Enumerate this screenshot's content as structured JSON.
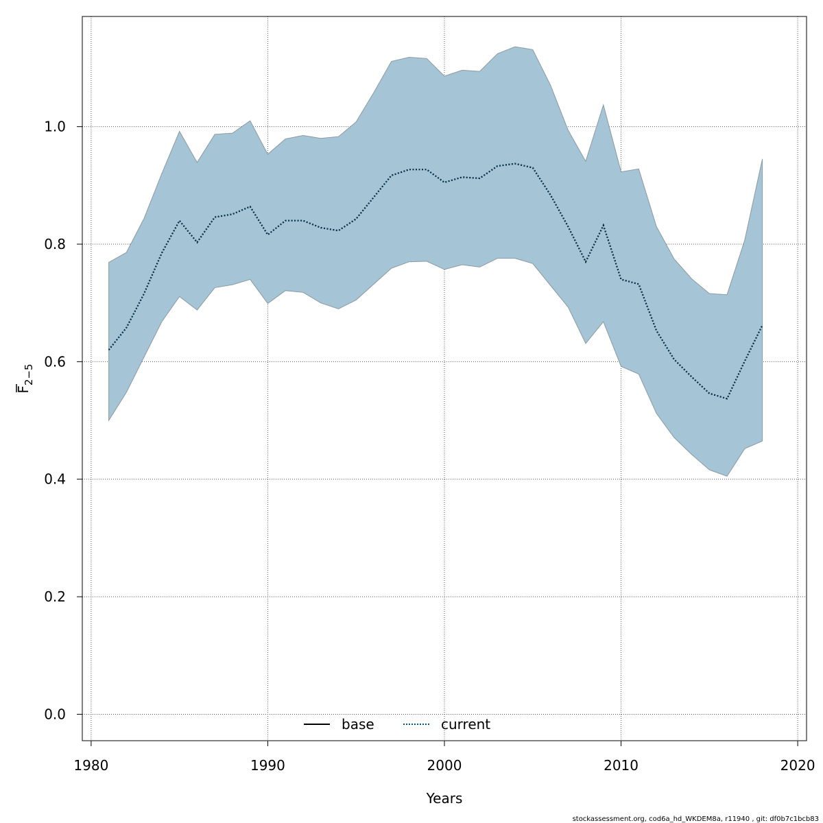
{
  "chart_data": {
    "type": "line",
    "title": "",
    "xlabel": "Years",
    "ylabel": {
      "main": "F",
      "sub": "2−5"
    },
    "xlim": [
      1979.5,
      2020.5
    ],
    "ylim": [
      -0.045,
      1.1875
    ],
    "x_ticks": [
      1980,
      1990,
      2000,
      2010,
      2020
    ],
    "y_ticks": [
      0.0,
      0.2,
      0.4,
      0.6,
      0.8,
      1.0
    ],
    "y_tick_labels": [
      "0.0",
      "0.2",
      "0.4",
      "0.6",
      "0.8",
      "1.0"
    ],
    "grid": true,
    "legend": {
      "placement": "bottom-center",
      "entries": [
        {
          "name": "base",
          "style": "solid",
          "color": "#000000"
        },
        {
          "name": "current",
          "style": "dotted",
          "color": "#00568C"
        }
      ]
    },
    "years": [
      1981,
      1982,
      1983,
      1984,
      1985,
      1986,
      1987,
      1988,
      1989,
      1990,
      1991,
      1992,
      1993,
      1994,
      1995,
      1996,
      1997,
      1998,
      1999,
      2000,
      2001,
      2002,
      2003,
      2004,
      2005,
      2006,
      2007,
      2008,
      2009,
      2010,
      2011,
      2012,
      2013,
      2014,
      2015,
      2016,
      2017,
      2018
    ],
    "series": [
      {
        "name": "current",
        "values": [
          0.62,
          0.658,
          0.716,
          0.785,
          0.84,
          0.803,
          0.846,
          0.851,
          0.864,
          0.816,
          0.84,
          0.84,
          0.828,
          0.823,
          0.843,
          0.88,
          0.917,
          0.927,
          0.927,
          0.905,
          0.914,
          0.912,
          0.933,
          0.937,
          0.93,
          0.884,
          0.83,
          0.77,
          0.832,
          0.74,
          0.732,
          0.653,
          0.604,
          0.574,
          0.546,
          0.537,
          0.601,
          0.662
        ]
      }
    ],
    "band": {
      "lower": [
        0.5,
        0.548,
        0.608,
        0.668,
        0.711,
        0.688,
        0.726,
        0.731,
        0.74,
        0.699,
        0.721,
        0.718,
        0.7,
        0.69,
        0.705,
        0.732,
        0.759,
        0.77,
        0.771,
        0.757,
        0.765,
        0.761,
        0.776,
        0.776,
        0.767,
        0.73,
        0.693,
        0.631,
        0.668,
        0.592,
        0.579,
        0.512,
        0.471,
        0.442,
        0.416,
        0.405,
        0.452,
        0.465
      ],
      "upper": [
        0.769,
        0.786,
        0.844,
        0.92,
        0.992,
        0.939,
        0.987,
        0.989,
        1.01,
        0.953,
        0.979,
        0.985,
        0.98,
        0.983,
        1.008,
        1.058,
        1.111,
        1.118,
        1.116,
        1.086,
        1.096,
        1.094,
        1.124,
        1.136,
        1.131,
        1.071,
        0.994,
        0.941,
        1.037,
        0.923,
        0.928,
        0.83,
        0.775,
        0.741,
        0.716,
        0.714,
        0.807,
        0.945
      ],
      "color": "#A5C4D5",
      "edge_color": "#8A9AA3"
    }
  },
  "footer": "stockassessment.org, cod6a_hd_WKDEM8a, r11940 , git: df0b7c1bcb83"
}
